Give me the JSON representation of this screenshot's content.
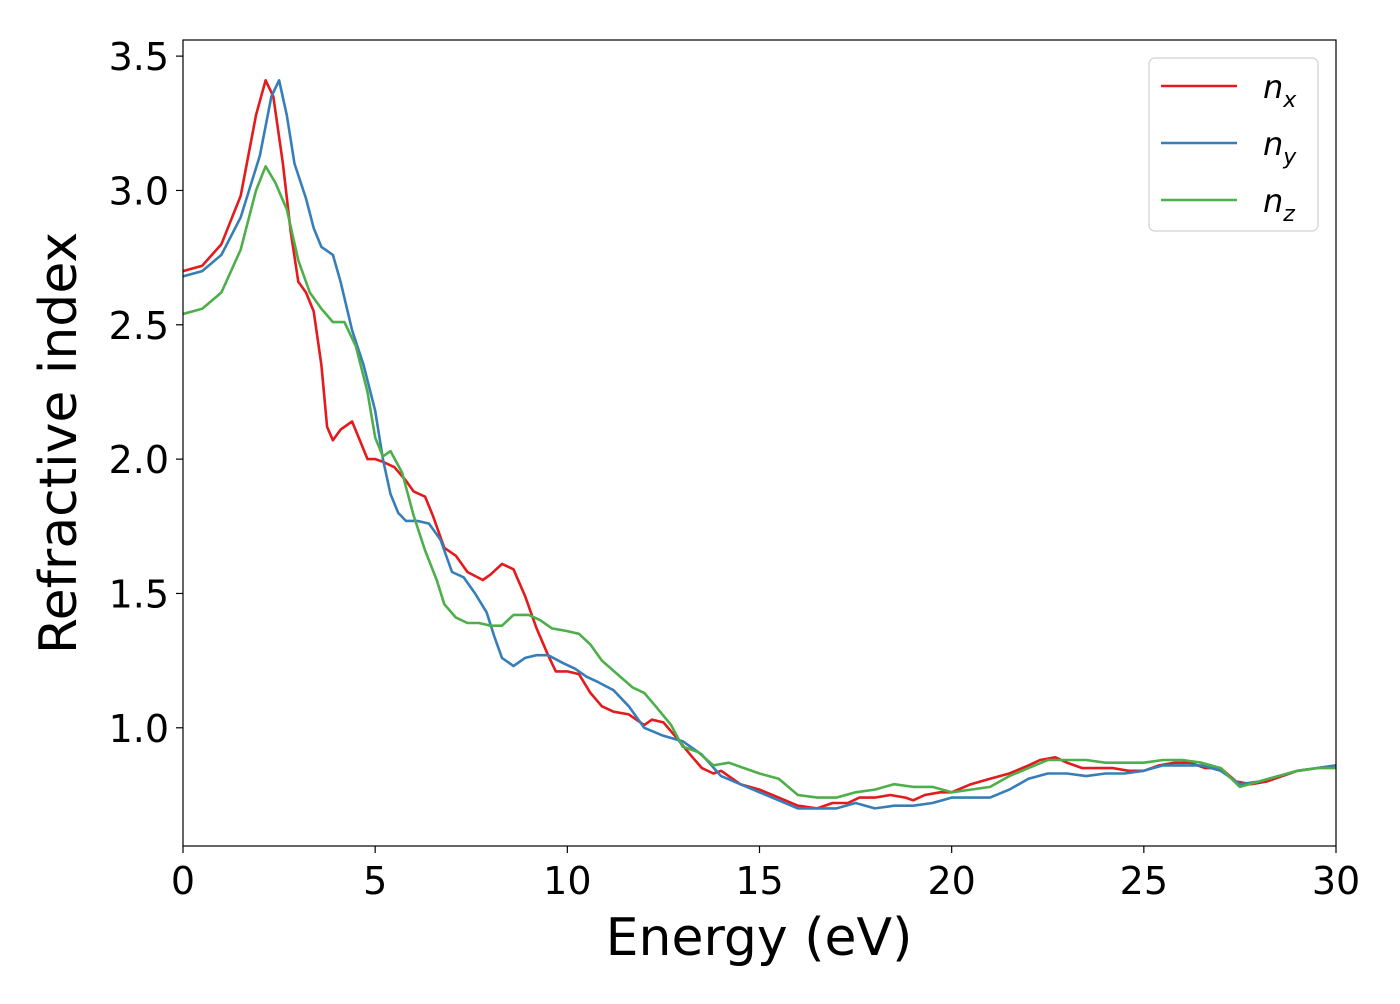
{
  "chart_data": {
    "type": "line",
    "title": "",
    "xlabel": "Energy (eV)",
    "ylabel": "Refractive index",
    "xlim": [
      0,
      30
    ],
    "ylim": [
      0.56,
      3.56
    ],
    "xticks": [
      0,
      5,
      10,
      15,
      20,
      25,
      30
    ],
    "yticks": [
      1.0,
      1.5,
      2.0,
      2.5,
      3.0,
      3.5
    ],
    "xtick_labels": [
      "0",
      "5",
      "10",
      "15",
      "20",
      "25",
      "30"
    ],
    "ytick_labels": [
      "1.0",
      "1.5",
      "2.0",
      "2.5",
      "3.0",
      "3.5"
    ],
    "grid": false,
    "legend_position": "top-right",
    "series": [
      {
        "name": "n_x",
        "label_base": "n",
        "label_sub": "x",
        "color": "#e41a1c",
        "points": [
          [
            0,
            2.7
          ],
          [
            0.5,
            2.72
          ],
          [
            1.0,
            2.8
          ],
          [
            1.5,
            2.98
          ],
          [
            1.9,
            3.28
          ],
          [
            2.15,
            3.41
          ],
          [
            2.35,
            3.35
          ],
          [
            2.6,
            3.1
          ],
          [
            2.8,
            2.85
          ],
          [
            3.0,
            2.66
          ],
          [
            3.2,
            2.62
          ],
          [
            3.4,
            2.55
          ],
          [
            3.6,
            2.35
          ],
          [
            3.75,
            2.12
          ],
          [
            3.9,
            2.07
          ],
          [
            4.1,
            2.11
          ],
          [
            4.4,
            2.14
          ],
          [
            4.6,
            2.07
          ],
          [
            4.8,
            2.0
          ],
          [
            5.0,
            2.0
          ],
          [
            5.2,
            1.99
          ],
          [
            5.5,
            1.97
          ],
          [
            5.8,
            1.92
          ],
          [
            6.0,
            1.88
          ],
          [
            6.3,
            1.86
          ],
          [
            6.5,
            1.79
          ],
          [
            6.8,
            1.67
          ],
          [
            7.1,
            1.64
          ],
          [
            7.4,
            1.58
          ],
          [
            7.8,
            1.55
          ],
          [
            8.0,
            1.57
          ],
          [
            8.3,
            1.61
          ],
          [
            8.6,
            1.59
          ],
          [
            8.9,
            1.49
          ],
          [
            9.2,
            1.37
          ],
          [
            9.5,
            1.27
          ],
          [
            9.7,
            1.21
          ],
          [
            10.0,
            1.21
          ],
          [
            10.3,
            1.2
          ],
          [
            10.6,
            1.13
          ],
          [
            10.9,
            1.08
          ],
          [
            11.2,
            1.06
          ],
          [
            11.6,
            1.05
          ],
          [
            12.0,
            1.01
          ],
          [
            12.2,
            1.03
          ],
          [
            12.5,
            1.02
          ],
          [
            12.8,
            0.97
          ],
          [
            13.2,
            0.9
          ],
          [
            13.5,
            0.85
          ],
          [
            13.8,
            0.83
          ],
          [
            14.0,
            0.84
          ],
          [
            14.5,
            0.79
          ],
          [
            15.0,
            0.77
          ],
          [
            15.5,
            0.74
          ],
          [
            16.0,
            0.71
          ],
          [
            16.5,
            0.7
          ],
          [
            16.9,
            0.72
          ],
          [
            17.3,
            0.72
          ],
          [
            17.6,
            0.74
          ],
          [
            18.0,
            0.74
          ],
          [
            18.4,
            0.75
          ],
          [
            18.8,
            0.74
          ],
          [
            19.0,
            0.73
          ],
          [
            19.3,
            0.75
          ],
          [
            19.7,
            0.76
          ],
          [
            20.0,
            0.76
          ],
          [
            20.5,
            0.79
          ],
          [
            21.0,
            0.81
          ],
          [
            21.5,
            0.83
          ],
          [
            22.0,
            0.86
          ],
          [
            22.3,
            0.88
          ],
          [
            22.7,
            0.89
          ],
          [
            23.0,
            0.87
          ],
          [
            23.4,
            0.85
          ],
          [
            23.8,
            0.85
          ],
          [
            24.2,
            0.85
          ],
          [
            24.6,
            0.84
          ],
          [
            25.0,
            0.84
          ],
          [
            25.4,
            0.86
          ],
          [
            25.8,
            0.87
          ],
          [
            26.2,
            0.87
          ],
          [
            26.6,
            0.85
          ],
          [
            27.0,
            0.85
          ],
          [
            27.4,
            0.8
          ],
          [
            27.8,
            0.79
          ],
          [
            28.2,
            0.8
          ],
          [
            28.6,
            0.82
          ],
          [
            29.0,
            0.84
          ],
          [
            29.5,
            0.85
          ],
          [
            30.0,
            0.86
          ]
        ]
      },
      {
        "name": "n_y",
        "label_base": "n",
        "label_sub": "y",
        "color": "#377eb8",
        "points": [
          [
            0,
            2.68
          ],
          [
            0.5,
            2.7
          ],
          [
            1.0,
            2.76
          ],
          [
            1.5,
            2.9
          ],
          [
            2.0,
            3.13
          ],
          [
            2.3,
            3.35
          ],
          [
            2.5,
            3.41
          ],
          [
            2.7,
            3.28
          ],
          [
            2.9,
            3.1
          ],
          [
            3.2,
            2.97
          ],
          [
            3.4,
            2.86
          ],
          [
            3.6,
            2.79
          ],
          [
            3.9,
            2.76
          ],
          [
            4.1,
            2.66
          ],
          [
            4.4,
            2.48
          ],
          [
            4.7,
            2.35
          ],
          [
            5.0,
            2.18
          ],
          [
            5.2,
            2.0
          ],
          [
            5.4,
            1.87
          ],
          [
            5.6,
            1.8
          ],
          [
            5.8,
            1.77
          ],
          [
            6.1,
            1.77
          ],
          [
            6.4,
            1.76
          ],
          [
            6.7,
            1.7
          ],
          [
            7.0,
            1.58
          ],
          [
            7.3,
            1.56
          ],
          [
            7.6,
            1.5
          ],
          [
            7.9,
            1.43
          ],
          [
            8.1,
            1.34
          ],
          [
            8.3,
            1.26
          ],
          [
            8.6,
            1.23
          ],
          [
            8.9,
            1.26
          ],
          [
            9.2,
            1.27
          ],
          [
            9.5,
            1.27
          ],
          [
            9.9,
            1.24
          ],
          [
            10.2,
            1.22
          ],
          [
            10.5,
            1.19
          ],
          [
            10.8,
            1.17
          ],
          [
            11.2,
            1.14
          ],
          [
            11.6,
            1.08
          ],
          [
            12.0,
            1.0
          ],
          [
            12.5,
            0.97
          ],
          [
            13.0,
            0.95
          ],
          [
            13.5,
            0.9
          ],
          [
            14.0,
            0.82
          ],
          [
            14.5,
            0.79
          ],
          [
            15.0,
            0.76
          ],
          [
            15.5,
            0.73
          ],
          [
            16.0,
            0.7
          ],
          [
            16.5,
            0.7
          ],
          [
            17.0,
            0.7
          ],
          [
            17.5,
            0.72
          ],
          [
            18.0,
            0.7
          ],
          [
            18.5,
            0.71
          ],
          [
            19.0,
            0.71
          ],
          [
            19.5,
            0.72
          ],
          [
            20.0,
            0.74
          ],
          [
            20.5,
            0.74
          ],
          [
            21.0,
            0.74
          ],
          [
            21.5,
            0.77
          ],
          [
            22.0,
            0.81
          ],
          [
            22.5,
            0.83
          ],
          [
            23.0,
            0.83
          ],
          [
            23.5,
            0.82
          ],
          [
            24.0,
            0.83
          ],
          [
            24.5,
            0.83
          ],
          [
            25.0,
            0.84
          ],
          [
            25.5,
            0.86
          ],
          [
            26.0,
            0.86
          ],
          [
            26.5,
            0.86
          ],
          [
            27.0,
            0.84
          ],
          [
            27.5,
            0.79
          ],
          [
            28.0,
            0.8
          ],
          [
            28.5,
            0.82
          ],
          [
            29.0,
            0.84
          ],
          [
            29.5,
            0.85
          ],
          [
            30.0,
            0.86
          ]
        ]
      },
      {
        "name": "n_z",
        "label_base": "n",
        "label_sub": "z",
        "color": "#4daf4a",
        "points": [
          [
            0,
            2.54
          ],
          [
            0.5,
            2.56
          ],
          [
            1.0,
            2.62
          ],
          [
            1.5,
            2.78
          ],
          [
            1.9,
            3.0
          ],
          [
            2.15,
            3.09
          ],
          [
            2.4,
            3.03
          ],
          [
            2.7,
            2.93
          ],
          [
            3.0,
            2.74
          ],
          [
            3.3,
            2.62
          ],
          [
            3.6,
            2.56
          ],
          [
            3.9,
            2.51
          ],
          [
            4.2,
            2.51
          ],
          [
            4.5,
            2.42
          ],
          [
            4.8,
            2.25
          ],
          [
            5.0,
            2.08
          ],
          [
            5.2,
            2.01
          ],
          [
            5.4,
            2.03
          ],
          [
            5.7,
            1.95
          ],
          [
            6.0,
            1.79
          ],
          [
            6.3,
            1.66
          ],
          [
            6.6,
            1.55
          ],
          [
            6.8,
            1.46
          ],
          [
            7.1,
            1.41
          ],
          [
            7.4,
            1.39
          ],
          [
            7.7,
            1.39
          ],
          [
            8.0,
            1.38
          ],
          [
            8.3,
            1.38
          ],
          [
            8.6,
            1.42
          ],
          [
            9.0,
            1.42
          ],
          [
            9.3,
            1.4
          ],
          [
            9.6,
            1.37
          ],
          [
            10.0,
            1.36
          ],
          [
            10.3,
            1.35
          ],
          [
            10.6,
            1.31
          ],
          [
            10.9,
            1.25
          ],
          [
            11.3,
            1.2
          ],
          [
            11.7,
            1.15
          ],
          [
            12.0,
            1.13
          ],
          [
            12.3,
            1.08
          ],
          [
            12.7,
            1.01
          ],
          [
            13.0,
            0.93
          ],
          [
            13.4,
            0.91
          ],
          [
            13.8,
            0.86
          ],
          [
            14.2,
            0.87
          ],
          [
            14.6,
            0.85
          ],
          [
            15.0,
            0.83
          ],
          [
            15.5,
            0.81
          ],
          [
            16.0,
            0.75
          ],
          [
            16.5,
            0.74
          ],
          [
            17.0,
            0.74
          ],
          [
            17.5,
            0.76
          ],
          [
            18.0,
            0.77
          ],
          [
            18.5,
            0.79
          ],
          [
            19.0,
            0.78
          ],
          [
            19.5,
            0.78
          ],
          [
            20.0,
            0.76
          ],
          [
            20.5,
            0.77
          ],
          [
            21.0,
            0.78
          ],
          [
            21.5,
            0.82
          ],
          [
            22.0,
            0.85
          ],
          [
            22.5,
            0.88
          ],
          [
            23.0,
            0.88
          ],
          [
            23.5,
            0.88
          ],
          [
            24.0,
            0.87
          ],
          [
            24.5,
            0.87
          ],
          [
            25.0,
            0.87
          ],
          [
            25.5,
            0.88
          ],
          [
            26.0,
            0.88
          ],
          [
            26.5,
            0.87
          ],
          [
            27.0,
            0.85
          ],
          [
            27.5,
            0.78
          ],
          [
            28.0,
            0.8
          ],
          [
            28.5,
            0.82
          ],
          [
            29.0,
            0.84
          ],
          [
            29.5,
            0.85
          ],
          [
            30.0,
            0.85
          ]
        ]
      }
    ]
  }
}
